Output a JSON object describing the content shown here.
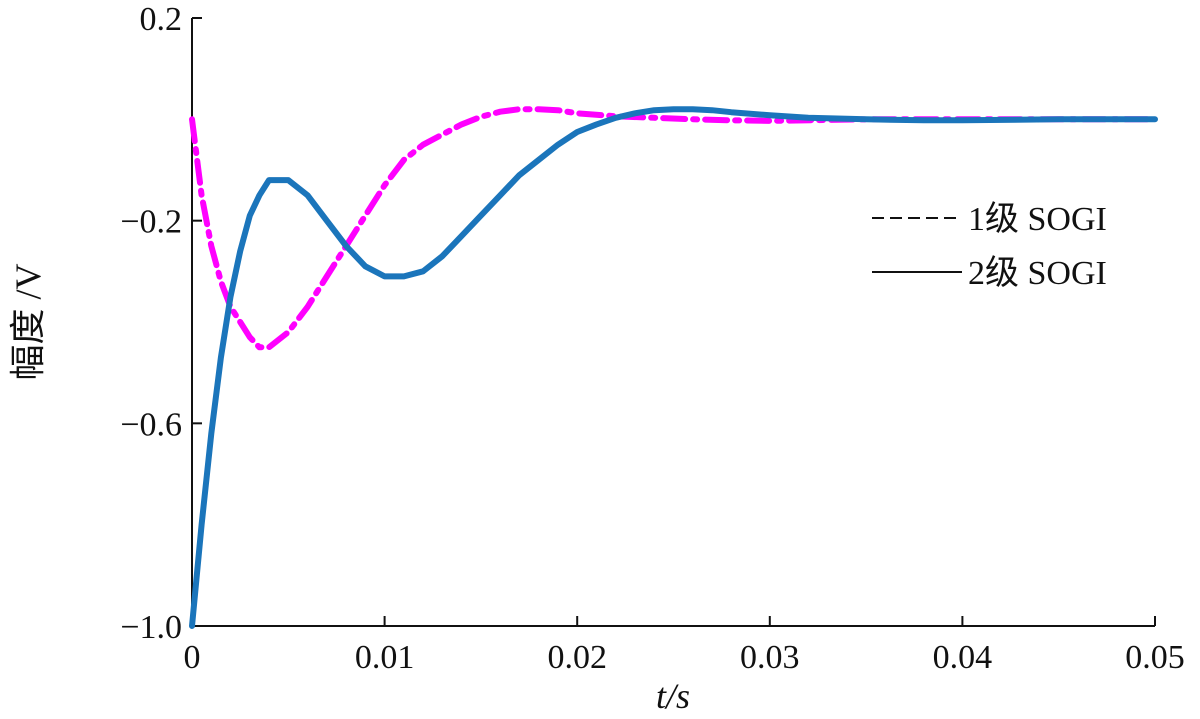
{
  "chart_data": {
    "type": "line",
    "title": "",
    "xlabel": "t/s",
    "ylabel": "幅度 /V",
    "xlim": [
      0,
      0.05
    ],
    "ylim": [
      -1.0,
      0.2
    ],
    "x_ticks": [
      0,
      0.01,
      0.02,
      0.03,
      0.04,
      0.05
    ],
    "x_tick_labels": [
      "0",
      "0.01",
      "0.02",
      "0.03",
      "0.04",
      "0.05"
    ],
    "y_ticks": [
      0.2,
      -0.2,
      -0.6,
      -1.0
    ],
    "y_tick_labels": [
      "0.2",
      "−0.2",
      "−0.6",
      "−1.0"
    ],
    "grid": false,
    "legend_position": "right",
    "series": [
      {
        "name": "1级 SOGI",
        "style": "dashed",
        "color": "#ff00ff",
        "x": [
          0,
          0.0005,
          0.001,
          0.0015,
          0.002,
          0.0025,
          0.003,
          0.0035,
          0.004,
          0.005,
          0.006,
          0.007,
          0.008,
          0.009,
          0.01,
          0.011,
          0.012,
          0.013,
          0.014,
          0.015,
          0.016,
          0.017,
          0.018,
          0.019,
          0.02,
          0.022,
          0.024,
          0.026,
          0.028,
          0.03,
          0.035,
          0.04,
          0.045,
          0.05
        ],
        "y": [
          0.0,
          -0.15,
          -0.25,
          -0.32,
          -0.37,
          -0.4,
          -0.43,
          -0.45,
          -0.45,
          -0.42,
          -0.37,
          -0.31,
          -0.25,
          -0.19,
          -0.13,
          -0.08,
          -0.05,
          -0.03,
          -0.01,
          0.005,
          0.015,
          0.02,
          0.02,
          0.018,
          0.012,
          0.006,
          0.003,
          0.0,
          -0.002,
          -0.003,
          0.0,
          0.0,
          0.0,
          0.0
        ]
      },
      {
        "name": "2级 SOGI",
        "style": "solid",
        "color": "#1b75bb",
        "x": [
          0,
          0.0005,
          0.001,
          0.0015,
          0.002,
          0.0025,
          0.003,
          0.0035,
          0.004,
          0.005,
          0.006,
          0.007,
          0.008,
          0.009,
          0.01,
          0.011,
          0.012,
          0.013,
          0.014,
          0.015,
          0.016,
          0.017,
          0.018,
          0.019,
          0.02,
          0.021,
          0.022,
          0.023,
          0.024,
          0.025,
          0.026,
          0.027,
          0.028,
          0.03,
          0.032,
          0.035,
          0.038,
          0.04,
          0.045,
          0.05
        ],
        "y": [
          -1.0,
          -0.8,
          -0.62,
          -0.47,
          -0.35,
          -0.26,
          -0.19,
          -0.15,
          -0.12,
          -0.12,
          -0.15,
          -0.2,
          -0.25,
          -0.29,
          -0.31,
          -0.31,
          -0.3,
          -0.27,
          -0.23,
          -0.19,
          -0.15,
          -0.11,
          -0.08,
          -0.05,
          -0.025,
          -0.01,
          0.003,
          0.012,
          0.018,
          0.02,
          0.02,
          0.018,
          0.014,
          0.008,
          0.003,
          0.0,
          -0.002,
          -0.002,
          0.0,
          0.0
        ]
      }
    ]
  }
}
